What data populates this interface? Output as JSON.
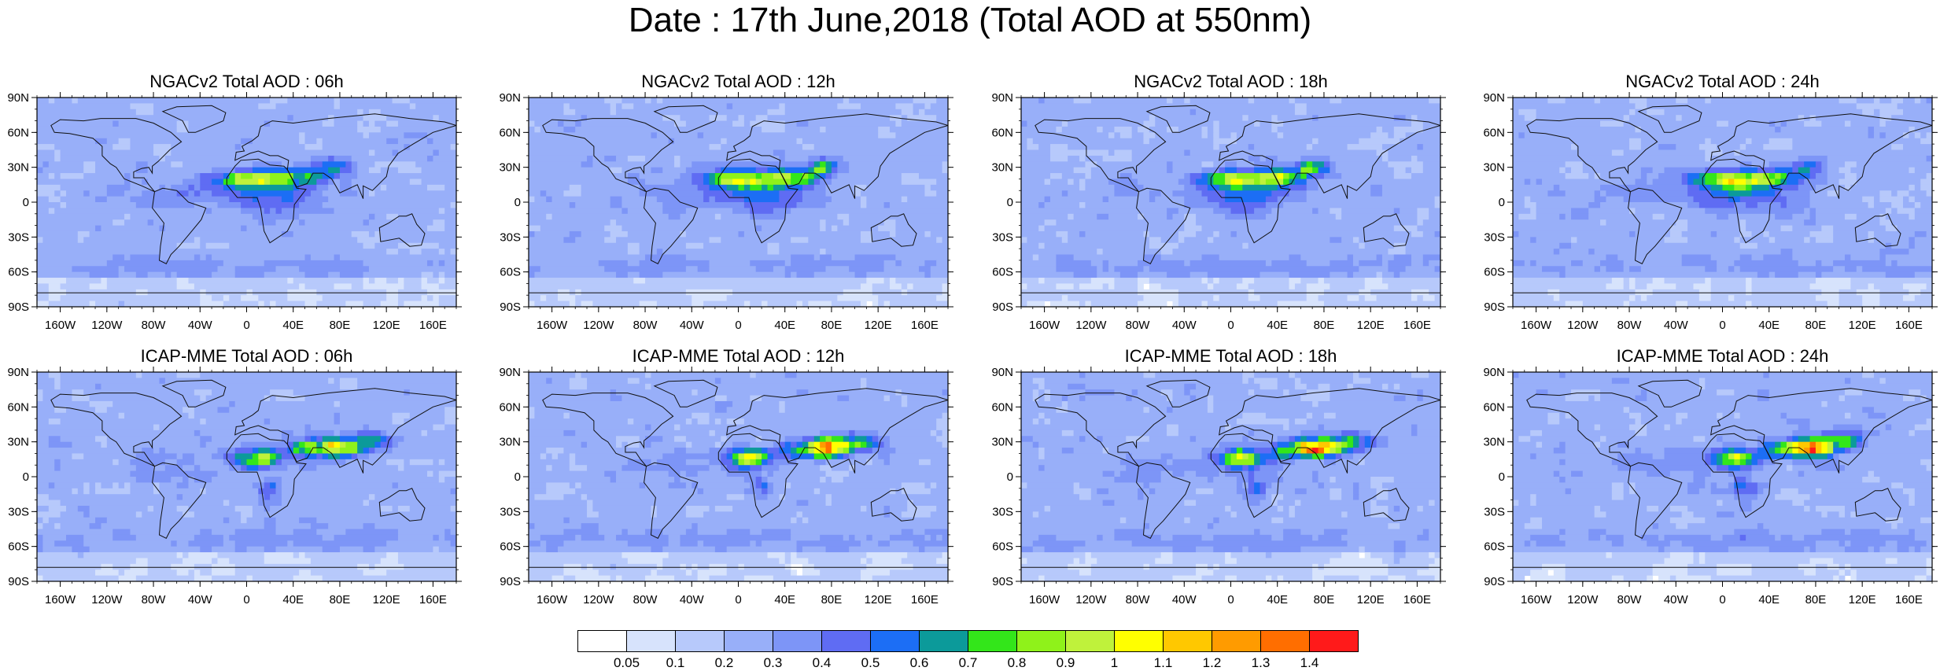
{
  "title": "Date : 17th June,2018 (Total AOD at 550nm)",
  "panels": [
    {
      "title": "NGACv2 Total AOD : 06h",
      "model": "NGACv2",
      "hour": "06h"
    },
    {
      "title": "NGACv2 Total AOD : 12h",
      "model": "NGACv2",
      "hour": "12h"
    },
    {
      "title": "NGACv2 Total AOD : 18h",
      "model": "NGACv2",
      "hour": "18h"
    },
    {
      "title": "NGACv2 Total AOD : 24h",
      "model": "NGACv2",
      "hour": "24h"
    },
    {
      "title": "ICAP-MME Total AOD : 06h",
      "model": "ICAP-MME",
      "hour": "06h"
    },
    {
      "title": "ICAP-MME Total AOD : 12h",
      "model": "ICAP-MME",
      "hour": "12h"
    },
    {
      "title": "ICAP-MME Total AOD : 18h",
      "model": "ICAP-MME",
      "hour": "18h"
    },
    {
      "title": "ICAP-MME Total AOD : 24h",
      "model": "ICAP-MME",
      "hour": "24h"
    }
  ],
  "lat_ticks": [
    "90N",
    "60N",
    "30N",
    "0",
    "30S",
    "60S",
    "90S"
  ],
  "lon_ticks": [
    "160W",
    "120W",
    "80W",
    "40W",
    "0",
    "40E",
    "80E",
    "120E",
    "160E"
  ],
  "colorbar": {
    "colors": [
      "#ffffff",
      "#d7e3fc",
      "#b7c9fb",
      "#98aff9",
      "#7d95f7",
      "#5f6cf3",
      "#1c6ef5",
      "#0c9a9a",
      "#33e61a",
      "#8ff21a",
      "#bff23b",
      "#ffff00",
      "#ffc800",
      "#ff9b00",
      "#ff6e00",
      "#ff1a1a"
    ],
    "labels": [
      "0.05",
      "0.1",
      "0.2",
      "0.3",
      "0.4",
      "0.5",
      "0.6",
      "0.7",
      "0.8",
      "0.9",
      "1",
      "1.1",
      "1.2",
      "1.3",
      "1.4"
    ]
  }
}
